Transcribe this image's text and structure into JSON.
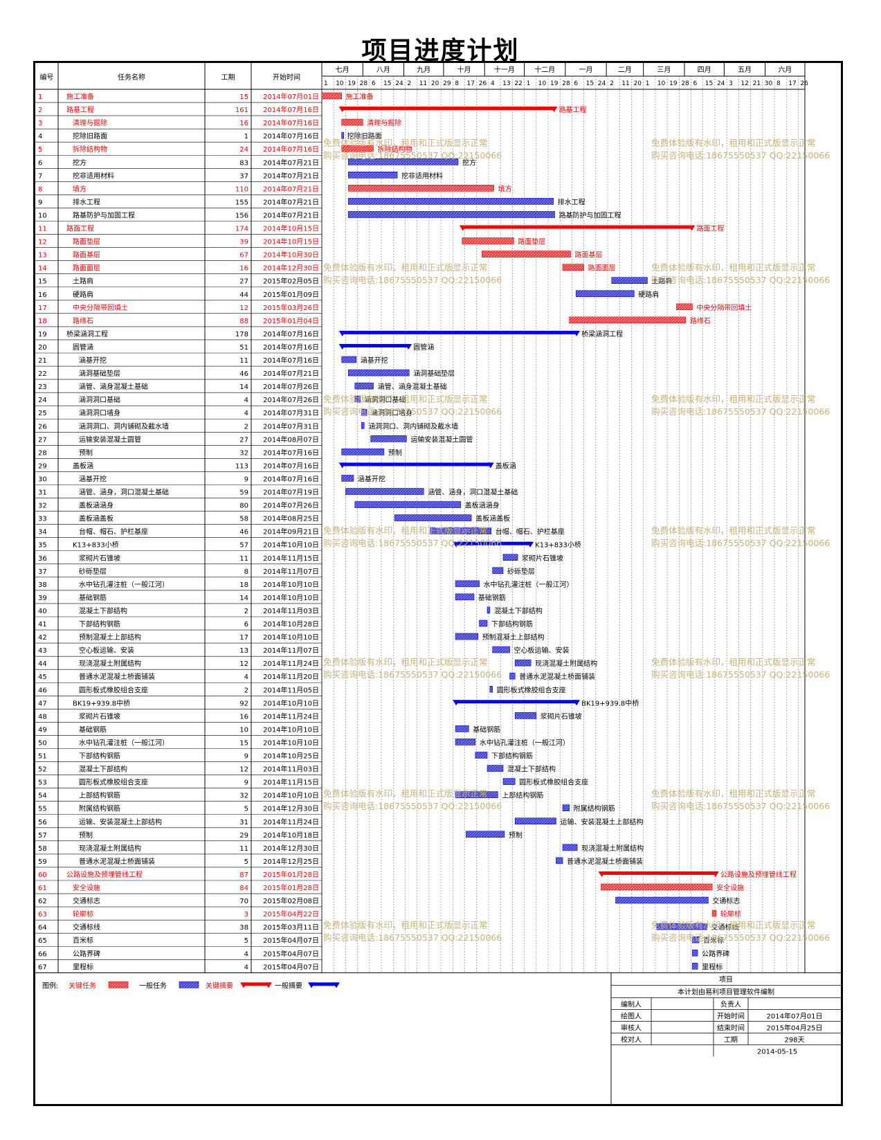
{
  "title": "项目进度计划",
  "headers": {
    "id": "编号",
    "name": "任务名称",
    "duration": "工期",
    "start": "开始时间"
  },
  "months": [
    "七月",
    "八月",
    "九月",
    "十月",
    "十一月",
    "十二月",
    "一月",
    "二月",
    "三月",
    "四月",
    "五月",
    "六月"
  ],
  "ticks": [
    "1",
    "10",
    "19",
    "28",
    "6",
    "15",
    "24",
    "2",
    "11",
    "20",
    "29",
    "8",
    "17",
    "26",
    "4",
    "13",
    "22",
    "1",
    "10",
    "19",
    "28",
    "6",
    "15",
    "24",
    "2",
    "11",
    "20",
    "1",
    "10",
    "19",
    "28",
    "6",
    "15",
    "24",
    "3",
    "12",
    "21",
    "30",
    "8",
    "17",
    "26"
  ],
  "colors": {
    "critical": "#ff0000",
    "normal": "#0000ff",
    "critical_bar": "#ff7777",
    "normal_bar": "#6f6fe8",
    "watermark": "#c9b27a"
  },
  "watermark": {
    "line1": "免费体验版有水印，租用和正式版显示正常",
    "line2": "购买咨询电话:18675550537 QQ:22150066"
  },
  "legend": {
    "label": "图例:",
    "critical_task": "关键任务",
    "normal_task": "一般任务",
    "critical_summary": "关键摘要",
    "normal_summary": "一般摘要"
  },
  "info": {
    "project_label": "项目",
    "note": "本计划由易利项目管理软件编制",
    "rows": [
      [
        "编制人",
        "",
        "负责人",
        ""
      ],
      [
        "绘图人",
        "",
        "开始时间",
        "2014年07月01日"
      ],
      [
        "审核人",
        "",
        "结束时间",
        "2015年04月25日"
      ],
      [
        "校对人",
        "",
        "工期",
        "298天"
      ]
    ],
    "date": "2014-05-15"
  },
  "chart_data": {
    "type": "gantt",
    "title": "项目进度计划",
    "x_axis": "2014-07-01 to 2015-06-30 (months 七月..六月)",
    "tasks": [
      {
        "id": "1",
        "name": "施工准备",
        "duration": 15,
        "start": "2014年07月01日",
        "type": "ct",
        "level": 0
      },
      {
        "id": "2",
        "name": "路基工程",
        "duration": 161,
        "start": "2014年07月16日",
        "type": "cs",
        "level": 0
      },
      {
        "id": "3",
        "name": "清理与掘除",
        "duration": 16,
        "start": "2014年07月16日",
        "type": "ct",
        "level": 1
      },
      {
        "id": "4",
        "name": "挖除旧路面",
        "duration": 1,
        "start": "2014年07月16日",
        "type": "nt",
        "level": 1
      },
      {
        "id": "5",
        "name": "拆除结构物",
        "duration": 24,
        "start": "2014年07月16日",
        "type": "ct",
        "level": 1
      },
      {
        "id": "6",
        "name": "挖方",
        "duration": 83,
        "start": "2014年07月21日",
        "type": "nt",
        "level": 1
      },
      {
        "id": "7",
        "name": "挖非适用材料",
        "duration": 37,
        "start": "2014年07月21日",
        "type": "nt",
        "level": 1
      },
      {
        "id": "8",
        "name": "填方",
        "duration": 110,
        "start": "2014年07月21日",
        "type": "ct",
        "level": 1
      },
      {
        "id": "9",
        "name": "排水工程",
        "duration": 155,
        "start": "2014年07月21日",
        "type": "nt",
        "level": 1
      },
      {
        "id": "10",
        "name": "路基防护与加固工程",
        "duration": 156,
        "start": "2014年07月21日",
        "type": "nt",
        "level": 1
      },
      {
        "id": "11",
        "name": "路面工程",
        "duration": 174,
        "start": "2014年10月15日",
        "type": "cs",
        "level": 0
      },
      {
        "id": "12",
        "name": "路面垫层",
        "duration": 39,
        "start": "2014年10月15日",
        "type": "ct",
        "level": 1
      },
      {
        "id": "13",
        "name": "路面基层",
        "duration": 67,
        "start": "2014年10月30日",
        "type": "ct",
        "level": 1
      },
      {
        "id": "14",
        "name": "路面面层",
        "duration": 16,
        "start": "2014年12月30日",
        "type": "ct",
        "level": 1
      },
      {
        "id": "15",
        "name": "土路肩",
        "duration": 27,
        "start": "2015年02月05日",
        "type": "nt",
        "level": 1
      },
      {
        "id": "16",
        "name": "硬路肩",
        "duration": 44,
        "start": "2015年01月09日",
        "type": "nt",
        "level": 1
      },
      {
        "id": "17",
        "name": "中央分隔带回填土",
        "duration": 12,
        "start": "2015年03月26日",
        "type": "ct",
        "level": 1
      },
      {
        "id": "18",
        "name": "路缘石",
        "duration": 88,
        "start": "2015年01月04日",
        "type": "ct",
        "level": 1
      },
      {
        "id": "19",
        "name": "桥梁涵洞工程",
        "duration": 178,
        "start": "2014年07月16日",
        "type": "ns",
        "level": 0
      },
      {
        "id": "20",
        "name": "圆管涵",
        "duration": 51,
        "start": "2014年07月16日",
        "type": "ns",
        "level": 1
      },
      {
        "id": "21",
        "name": "涵基开挖",
        "duration": 11,
        "start": "2014年07月16日",
        "type": "nt",
        "level": 2
      },
      {
        "id": "22",
        "name": "涵洞基础垫层",
        "duration": 46,
        "start": "2014年07月21日",
        "type": "nt",
        "level": 2
      },
      {
        "id": "23",
        "name": "涵管、涵身混凝土基础",
        "duration": 14,
        "start": "2014年07月26日",
        "type": "nt",
        "level": 2
      },
      {
        "id": "24",
        "name": "涵洞洞口基础",
        "duration": 4,
        "start": "2014年07月26日",
        "type": "nt",
        "level": 2
      },
      {
        "id": "25",
        "name": "涵洞洞口墙身",
        "duration": 4,
        "start": "2014年07月31日",
        "type": "nt",
        "level": 2
      },
      {
        "id": "26",
        "name": "涵洞洞口、洞内铺砌及截水墙",
        "duration": 2,
        "start": "2014年07月31日",
        "type": "nt",
        "level": 2
      },
      {
        "id": "27",
        "name": "运输安装混凝土圆管",
        "duration": 27,
        "start": "2014年08月07日",
        "type": "nt",
        "level": 2
      },
      {
        "id": "28",
        "name": "预制",
        "duration": 32,
        "start": "2014年07月16日",
        "type": "nt",
        "level": 2
      },
      {
        "id": "29",
        "name": "盖板涵",
        "duration": 113,
        "start": "2014年07月16日",
        "type": "ns",
        "level": 1
      },
      {
        "id": "30",
        "name": "涵基开挖",
        "duration": 9,
        "start": "2014年07月16日",
        "type": "nt",
        "level": 2
      },
      {
        "id": "31",
        "name": "涵管、涵身，洞口混凝土基础",
        "duration": 59,
        "start": "2014年07月19日",
        "type": "nt",
        "level": 2
      },
      {
        "id": "32",
        "name": "盖板涵涵身",
        "duration": 80,
        "start": "2014年07月26日",
        "type": "nt",
        "level": 2
      },
      {
        "id": "33",
        "name": "盖板涵盖板",
        "duration": 58,
        "start": "2014年08月25日",
        "type": "nt",
        "level": 2
      },
      {
        "id": "34",
        "name": "台帽、帽石、护栏基座",
        "duration": 46,
        "start": "2014年09月21日",
        "type": "nt",
        "level": 2
      },
      {
        "id": "35",
        "name": "K13+833小桥",
        "duration": 57,
        "start": "2014年10月10日",
        "type": "ns",
        "level": 1
      },
      {
        "id": "36",
        "name": "浆砌片石锥坡",
        "duration": 11,
        "start": "2014年11月15日",
        "type": "nt",
        "level": 2
      },
      {
        "id": "37",
        "name": "砂砾垫层",
        "duration": 8,
        "start": "2014年11月07日",
        "type": "nt",
        "level": 2
      },
      {
        "id": "38",
        "name": "水中钻孔灌注桩（一般江河）",
        "duration": 18,
        "start": "2014年10月10日",
        "type": "nt",
        "level": 2
      },
      {
        "id": "39",
        "name": "基础钢筋",
        "duration": 14,
        "start": "2014年10月10日",
        "type": "nt",
        "level": 2
      },
      {
        "id": "40",
        "name": "混凝土下部结构",
        "duration": 2,
        "start": "2014年11月03日",
        "type": "nt",
        "level": 2
      },
      {
        "id": "41",
        "name": "下部结构钢筋",
        "duration": 6,
        "start": "2014年10月28日",
        "type": "nt",
        "level": 2
      },
      {
        "id": "42",
        "name": "预制混凝土上部结构",
        "duration": 17,
        "start": "2014年10月10日",
        "type": "nt",
        "level": 2
      },
      {
        "id": "43",
        "name": "空心板运输、安装",
        "duration": 13,
        "start": "2014年11月07日",
        "type": "nt",
        "level": 2
      },
      {
        "id": "44",
        "name": "现浇混凝土附属结构",
        "duration": 12,
        "start": "2014年11月24日",
        "type": "nt",
        "level": 2
      },
      {
        "id": "45",
        "name": "普通水泥混凝土桥面铺装",
        "duration": 4,
        "start": "2014年11月20日",
        "type": "nt",
        "level": 2
      },
      {
        "id": "46",
        "name": "圆形板式橡胶组合支座",
        "duration": 2,
        "start": "2014年11月05日",
        "type": "nt",
        "level": 2
      },
      {
        "id": "47",
        "name": "BK19+939.8中桥",
        "duration": 92,
        "start": "2014年10月10日",
        "type": "ns",
        "level": 1
      },
      {
        "id": "48",
        "name": "浆砌片石锥坡",
        "duration": 16,
        "start": "2014年11月24日",
        "type": "nt",
        "level": 2
      },
      {
        "id": "49",
        "name": "基础钢筋",
        "duration": 10,
        "start": "2014年10月10日",
        "type": "nt",
        "level": 2
      },
      {
        "id": "50",
        "name": "水中钻孔灌注桩（一般江河）",
        "duration": 15,
        "start": "2014年10月10日",
        "type": "nt",
        "level": 2
      },
      {
        "id": "51",
        "name": "下部结构钢筋",
        "duration": 9,
        "start": "2014年10月25日",
        "type": "nt",
        "level": 2
      },
      {
        "id": "52",
        "name": "混凝土下部结构",
        "duration": 12,
        "start": "2014年11月03日",
        "type": "nt",
        "level": 2
      },
      {
        "id": "53",
        "name": "圆形板式橡胶组合支座",
        "duration": 9,
        "start": "2014年11月15日",
        "type": "nt",
        "level": 2
      },
      {
        "id": "54",
        "name": "上部结构钢筋",
        "duration": 32,
        "start": "2014年10月10日",
        "type": "nt",
        "level": 2
      },
      {
        "id": "55",
        "name": "附属结构钢筋",
        "duration": 5,
        "start": "2014年12月30日",
        "type": "nt",
        "level": 2
      },
      {
        "id": "56",
        "name": "运输、安装混凝土上部结构",
        "duration": 31,
        "start": "2014年11月24日",
        "type": "nt",
        "level": 2
      },
      {
        "id": "57",
        "name": "预制",
        "duration": 29,
        "start": "2014年10月18日",
        "type": "nt",
        "level": 2
      },
      {
        "id": "58",
        "name": "现浇混凝土附属结构",
        "duration": 11,
        "start": "2014年12月30日",
        "type": "nt",
        "level": 2
      },
      {
        "id": "59",
        "name": "普通水泥混凝土桥面铺装",
        "duration": 5,
        "start": "2014年12月25日",
        "type": "nt",
        "level": 2
      },
      {
        "id": "60",
        "name": "公路设施及预埋管线工程",
        "duration": 87,
        "start": "2015年01月28日",
        "type": "cs",
        "level": 0
      },
      {
        "id": "61",
        "name": "安全设施",
        "duration": 84,
        "start": "2015年01月28日",
        "type": "ct",
        "level": 1
      },
      {
        "id": "62",
        "name": "交通标志",
        "duration": 70,
        "start": "2015年02月08日",
        "type": "nt",
        "level": 1
      },
      {
        "id": "63",
        "name": "轮廓标",
        "duration": 3,
        "start": "2015年04月22日",
        "type": "ct",
        "level": 1
      },
      {
        "id": "64",
        "name": "交通标线",
        "duration": 38,
        "start": "2015年03月11日",
        "type": "nt",
        "level": 1
      },
      {
        "id": "65",
        "name": "百米标",
        "duration": 5,
        "start": "2015年04月07日",
        "type": "nt",
        "level": 1
      },
      {
        "id": "66",
        "name": "公路界碑",
        "duration": 4,
        "start": "2015年04月07日",
        "type": "nt",
        "level": 1
      },
      {
        "id": "67",
        "name": "里程标",
        "duration": 4,
        "start": "2015年04月07日",
        "type": "nt",
        "level": 1
      }
    ]
  }
}
